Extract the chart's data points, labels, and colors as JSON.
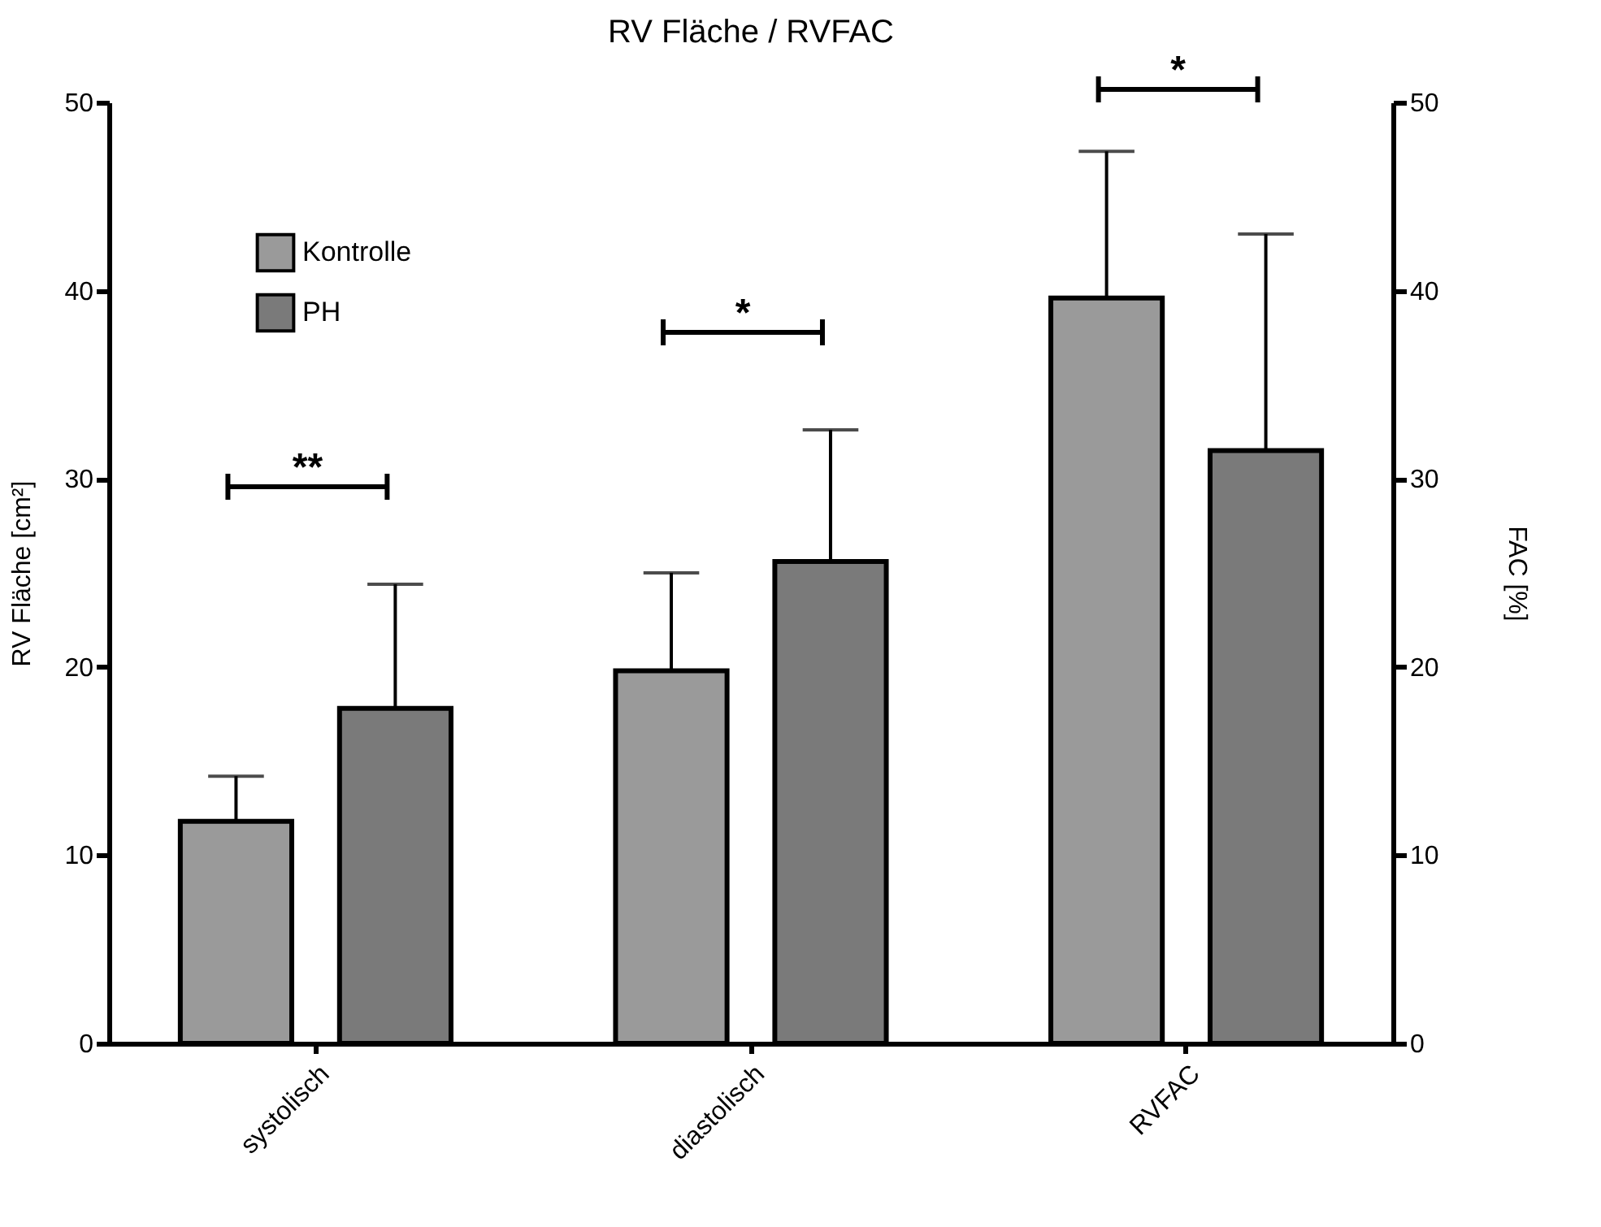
{
  "chart_data": {
    "type": "bar",
    "title": "RV Fläche / RVFAC",
    "ylabel": "RV Fläche [cm²]",
    "y2label": "FAC [%]",
    "categories": [
      "systolisch",
      "diastolisch",
      "RVFAC"
    ],
    "series": [
      {
        "name": "Kontrolle",
        "color": "#9a9a9a",
        "values": [
          11.8,
          19.8,
          null
        ],
        "errors": [
          [
            11.8,
            14.2
          ],
          [
            19.8,
            25.0
          ],
          null
        ]
      },
      {
        "name": "PH",
        "color": "#7a7a7a",
        "values": [
          17.8,
          25.6,
          null
        ],
        "errors": [
          [
            17.8,
            24.4
          ],
          [
            25.6,
            32.6
          ],
          null
        ]
      },
      {
        "color": "#9a9a9a",
        "axis": "y2",
        "values": [
          null,
          null,
          39.6
        ],
        "errors": [
          null,
          null,
          [
            39.6,
            47.4
          ]
        ]
      },
      {
        "color": "#7a7a7a",
        "axis": "y2",
        "values": [
          null,
          null,
          31.5
        ],
        "errors": [
          null,
          null,
          [
            31.5,
            43.0
          ]
        ]
      }
    ],
    "ylim": [
      0,
      50
    ],
    "yticks": [
      0,
      10,
      20,
      30,
      40,
      50
    ],
    "y2lim": [
      0,
      50
    ],
    "y2ticks": [
      0,
      10,
      20,
      30,
      40,
      50
    ],
    "annotations": [
      "**",
      "*",
      "*"
    ],
    "legend": "top left",
    "grid": false
  }
}
